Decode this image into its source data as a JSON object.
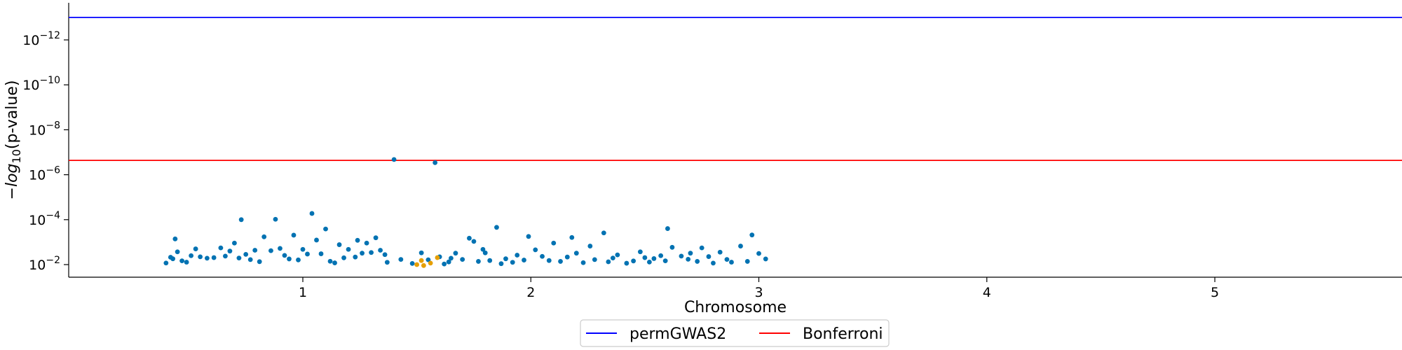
{
  "chart_data": {
    "type": "scatter",
    "title": "",
    "xlabel": "Chromosome",
    "ylabel_prefix": "−",
    "ylabel_log": "log",
    "ylabel_sub": "10",
    "ylabel_suffix": "(p-value)",
    "y_scale": "log",
    "y_inverted": true,
    "ylim": [
      0.02,
      2e-14
    ],
    "y_ticks": [
      {
        "value": 1e-12,
        "base": "10",
        "exp": "−12"
      },
      {
        "value": 1e-10,
        "base": "10",
        "exp": "−10"
      },
      {
        "value": 1e-08,
        "base": "10",
        "exp": "−8"
      },
      {
        "value": 1e-06,
        "base": "10",
        "exp": "−6"
      },
      {
        "value": 0.0001,
        "base": "10",
        "exp": "−4"
      },
      {
        "value": 0.01,
        "base": "10",
        "exp": "−2"
      }
    ],
    "x_ticks": [
      "1",
      "2",
      "3",
      "4",
      "5"
    ],
    "grid": false,
    "legend_placement": "bottom-center",
    "thresholds": [
      {
        "name": "permGWAS2",
        "value": 1e-13,
        "color": "#0000ff"
      },
      {
        "name": "Bonferroni",
        "value": 2.3e-07,
        "color": "#ff0000"
      }
    ],
    "series": [
      {
        "chromosome": "1",
        "color": "#0072b2",
        "points": [
          {
            "x": 0.4,
            "y": 0.0085
          },
          {
            "x": 0.42,
            "y": 0.0047
          },
          {
            "x": 0.43,
            "y": 0.0055
          },
          {
            "x": 0.44,
            "y": 0.00072
          },
          {
            "x": 0.45,
            "y": 0.0027
          },
          {
            "x": 0.47,
            "y": 0.0068
          },
          {
            "x": 0.49,
            "y": 0.0078
          },
          {
            "x": 0.51,
            "y": 0.004
          },
          {
            "x": 0.53,
            "y": 0.002
          },
          {
            "x": 0.55,
            "y": 0.0045
          },
          {
            "x": 0.58,
            "y": 0.0052
          },
          {
            "x": 0.61,
            "y": 0.0049
          },
          {
            "x": 0.64,
            "y": 0.0018
          },
          {
            "x": 0.66,
            "y": 0.0042
          },
          {
            "x": 0.68,
            "y": 0.0025
          },
          {
            "x": 0.7,
            "y": 0.0011
          },
          {
            "x": 0.72,
            "y": 0.0051
          },
          {
            "x": 0.73,
            "y": 0.0001
          },
          {
            "x": 0.75,
            "y": 0.0035
          },
          {
            "x": 0.77,
            "y": 0.006
          },
          {
            "x": 0.79,
            "y": 0.0023
          },
          {
            "x": 0.81,
            "y": 0.0074
          },
          {
            "x": 0.83,
            "y": 0.00058
          },
          {
            "x": 0.86,
            "y": 0.0024
          },
          {
            "x": 0.88,
            "y": 9.6e-05
          },
          {
            "x": 0.9,
            "y": 0.0019
          },
          {
            "x": 0.92,
            "y": 0.0039
          },
          {
            "x": 0.94,
            "y": 0.0056
          },
          {
            "x": 0.96,
            "y": 0.00049
          },
          {
            "x": 0.98,
            "y": 0.0062
          },
          {
            "x": 1.0,
            "y": 0.0021
          },
          {
            "x": 1.02,
            "y": 0.0034
          },
          {
            "x": 1.04,
            "y": 5.3e-05
          },
          {
            "x": 1.06,
            "y": 0.00081
          },
          {
            "x": 1.08,
            "y": 0.0033
          },
          {
            "x": 1.1,
            "y": 0.00026
          },
          {
            "x": 1.12,
            "y": 0.0071
          },
          {
            "x": 1.14,
            "y": 0.0084
          },
          {
            "x": 1.16,
            "y": 0.0013
          },
          {
            "x": 1.18,
            "y": 0.005
          },
          {
            "x": 1.2,
            "y": 0.0021
          },
          {
            "x": 1.23,
            "y": 0.0046
          },
          {
            "x": 1.24,
            "y": 0.00083
          },
          {
            "x": 1.26,
            "y": 0.0031
          },
          {
            "x": 1.28,
            "y": 0.0011
          },
          {
            "x": 1.3,
            "y": 0.0029
          },
          {
            "x": 1.32,
            "y": 0.00064
          },
          {
            "x": 1.34,
            "y": 0.0023
          },
          {
            "x": 1.36,
            "y": 0.0036
          },
          {
            "x": 1.37,
            "y": 0.0079
          },
          {
            "x": 1.4,
            "y": 2.1e-07
          },
          {
            "x": 1.43,
            "y": 0.0059
          },
          {
            "x": 1.48,
            "y": 0.0089
          },
          {
            "x": 1.52,
            "y": 0.003
          },
          {
            "x": 1.55,
            "y": 0.0061
          },
          {
            "x": 1.58,
            "y": 2.9e-07
          },
          {
            "x": 1.6,
            "y": 0.0045
          },
          {
            "x": 1.62,
            "y": 0.0094
          },
          {
            "x": 1.64,
            "y": 0.0076
          },
          {
            "x": 1.65,
            "y": 0.0052
          },
          {
            "x": 1.67,
            "y": 0.0031
          },
          {
            "x": 1.7,
            "y": 0.0059
          },
          {
            "x": 1.73,
            "y": 0.00067
          },
          {
            "x": 1.75,
            "y": 0.00093
          },
          {
            "x": 1.77,
            "y": 0.0072
          },
          {
            "x": 1.79,
            "y": 0.0021
          },
          {
            "x": 1.8,
            "y": 0.003
          },
          {
            "x": 1.82,
            "y": 0.0066
          },
          {
            "x": 1.85,
            "y": 0.00022
          },
          {
            "x": 1.87,
            "y": 0.0091
          },
          {
            "x": 1.89,
            "y": 0.0055
          },
          {
            "x": 1.92,
            "y": 0.0079
          },
          {
            "x": 1.94,
            "y": 0.0038
          },
          {
            "x": 1.97,
            "y": 0.0063
          },
          {
            "x": 1.99,
            "y": 0.00056
          },
          {
            "x": 2.02,
            "y": 0.0022
          },
          {
            "x": 2.05,
            "y": 0.0043
          },
          {
            "x": 2.08,
            "y": 0.0066
          },
          {
            "x": 2.1,
            "y": 0.0011
          },
          {
            "x": 2.13,
            "y": 0.0072
          },
          {
            "x": 2.16,
            "y": 0.0046
          },
          {
            "x": 2.18,
            "y": 0.00062
          },
          {
            "x": 2.2,
            "y": 0.0031
          },
          {
            "x": 2.23,
            "y": 0.0082
          },
          {
            "x": 2.26,
            "y": 0.0015
          },
          {
            "x": 2.28,
            "y": 0.006
          },
          {
            "x": 2.32,
            "y": 0.00039
          },
          {
            "x": 2.34,
            "y": 0.0075
          },
          {
            "x": 2.36,
            "y": 0.0051
          },
          {
            "x": 2.38,
            "y": 0.0037
          },
          {
            "x": 2.42,
            "y": 0.0087
          },
          {
            "x": 2.45,
            "y": 0.0069
          },
          {
            "x": 2.48,
            "y": 0.0027
          },
          {
            "x": 2.5,
            "y": 0.0049
          },
          {
            "x": 2.52,
            "y": 0.0077
          },
          {
            "x": 2.54,
            "y": 0.0054
          },
          {
            "x": 2.57,
            "y": 0.004
          },
          {
            "x": 2.59,
            "y": 0.0068
          },
          {
            "x": 2.6,
            "y": 0.00025
          },
          {
            "x": 2.62,
            "y": 0.0017
          },
          {
            "x": 2.66,
            "y": 0.0042
          },
          {
            "x": 2.69,
            "y": 0.0058
          },
          {
            "x": 2.7,
            "y": 0.0031
          },
          {
            "x": 2.73,
            "y": 0.0072
          },
          {
            "x": 2.75,
            "y": 0.0018
          },
          {
            "x": 2.78,
            "y": 0.0044
          },
          {
            "x": 2.8,
            "y": 0.0086
          },
          {
            "x": 2.83,
            "y": 0.0028
          },
          {
            "x": 2.86,
            "y": 0.0059
          },
          {
            "x": 2.88,
            "y": 0.0078
          },
          {
            "x": 2.92,
            "y": 0.0015
          },
          {
            "x": 2.95,
            "y": 0.0072
          },
          {
            "x": 2.97,
            "y": 0.00048
          },
          {
            "x": 3.0,
            "y": 0.0032
          },
          {
            "x": 3.03,
            "y": 0.0056
          }
        ]
      },
      {
        "chromosome": "2",
        "color": "#e69f00",
        "points": [
          {
            "x": 1.5,
            "y": 0.01
          },
          {
            "x": 1.52,
            "y": 0.0066
          },
          {
            "x": 1.53,
            "y": 0.011
          },
          {
            "x": 1.56,
            "y": 0.0086
          },
          {
            "x": 1.59,
            "y": 0.0049
          }
        ]
      }
    ]
  },
  "legend": {
    "items": [
      {
        "label": "permGWAS2",
        "color": "#0000ff"
      },
      {
        "label": "Bonferroni",
        "color": "#ff0000"
      }
    ]
  }
}
